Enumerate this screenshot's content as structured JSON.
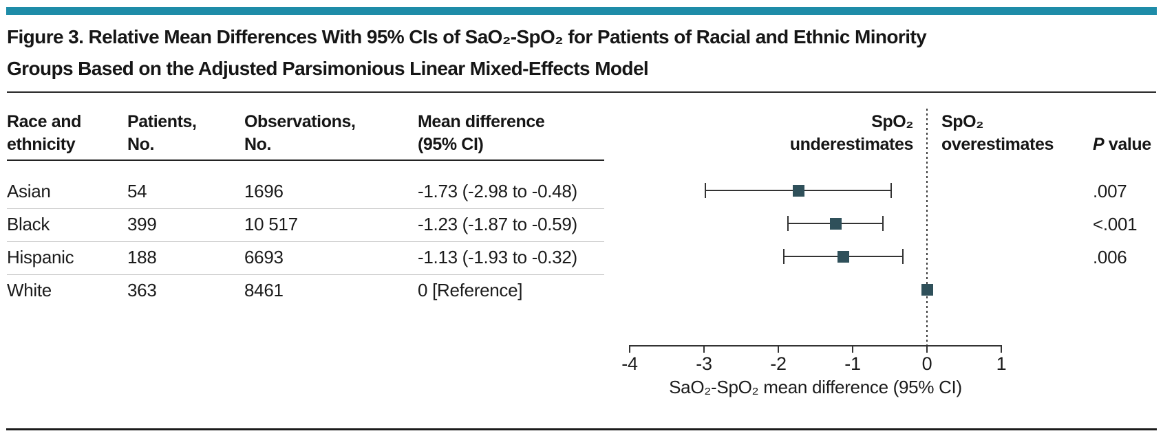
{
  "figure": {
    "title_line1": "Figure 3. Relative Mean Differences With 95% CIs of SaO₂-SpO₂ for Patients of Racial and Ethnic Minority",
    "title_line2": "Groups Based on the Adjusted Parsimonious Linear Mixed-Effects Model"
  },
  "table": {
    "headers": {
      "race": "Race and\nethnicity",
      "patients": "Patients,\nNo.",
      "observations": "Observations,\nNo.",
      "mean_diff": "Mean difference\n(95% CI)",
      "p_italic": "P",
      "p_rest": " value"
    }
  },
  "chart_data": {
    "type": "scatter",
    "variant": "forest-plot",
    "title": "",
    "xlabel": "SaO₂-SpO₂ mean difference (95% CI)",
    "ylabel": "",
    "xlim": [
      -4,
      1
    ],
    "x_ticks": [
      -4,
      -3,
      -2,
      -1,
      0,
      1
    ],
    "reference_line_x": 0,
    "grid": false,
    "region_labels": {
      "left": "SpO₂\nunderestimates",
      "right": "SpO₂\noverestimates"
    },
    "rows": [
      {
        "race": "Asian",
        "patients": "54",
        "observations": "1696",
        "label": "-1.73 (-2.98 to -0.48)",
        "mean": -1.73,
        "ci_low": -2.98,
        "ci_high": -0.48,
        "p_value": ".007"
      },
      {
        "race": "Black",
        "patients": "399",
        "observations": "10 517",
        "label": "-1.23 (-1.87 to -0.59)",
        "mean": -1.23,
        "ci_low": -1.87,
        "ci_high": -0.59,
        "p_value": "<.001"
      },
      {
        "race": "Hispanic",
        "patients": "188",
        "observations": "6693",
        "label": "-1.13 (-1.93 to -0.32)",
        "mean": -1.13,
        "ci_low": -1.93,
        "ci_high": -0.32,
        "p_value": ".006"
      },
      {
        "race": "White",
        "patients": "363",
        "observations": "8461",
        "label": "0 [Reference]",
        "mean": 0,
        "ci_low": null,
        "ci_high": null,
        "p_value": ""
      }
    ]
  },
  "colors": {
    "accent_bar": "#1E8CA8",
    "marker": "#2F505A",
    "rule_dark": "#1b1b1b",
    "row_separator": "#c9c9c9",
    "text": "#1b1b1b"
  }
}
